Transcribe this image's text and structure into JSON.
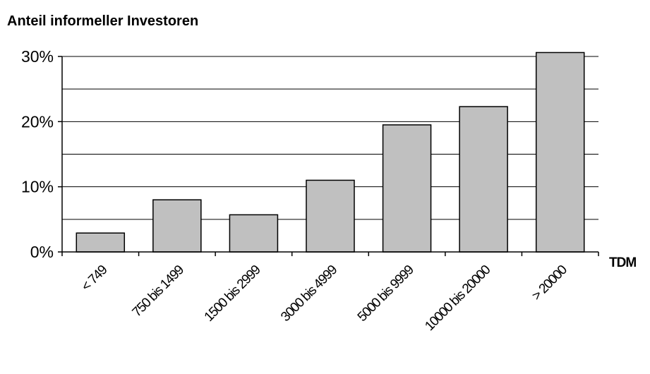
{
  "chart_data": {
    "type": "bar",
    "title": "Anteil informeller Investoren",
    "xlabel": "TDM",
    "ylabel": "",
    "categories": [
      "< 749",
      "750 bis 1499",
      "1500 bis 2999",
      "3000 bis 4999",
      "5000 bis 9999",
      "10000 bis 20000",
      "> 20000"
    ],
    "values": [
      2.9,
      8.0,
      5.7,
      11.0,
      19.5,
      22.3,
      30.6
    ],
    "value_unit": "%",
    "ylim": [
      0,
      30
    ],
    "yticks": [
      0,
      10,
      20,
      30
    ],
    "ytick_labels": [
      "0%",
      "10%",
      "20%",
      "30%"
    ],
    "grid": true,
    "legend": "none",
    "colors": {
      "bar_fill": "#c0c0c0",
      "bar_stroke": "#000000",
      "grid": "#000000"
    }
  }
}
